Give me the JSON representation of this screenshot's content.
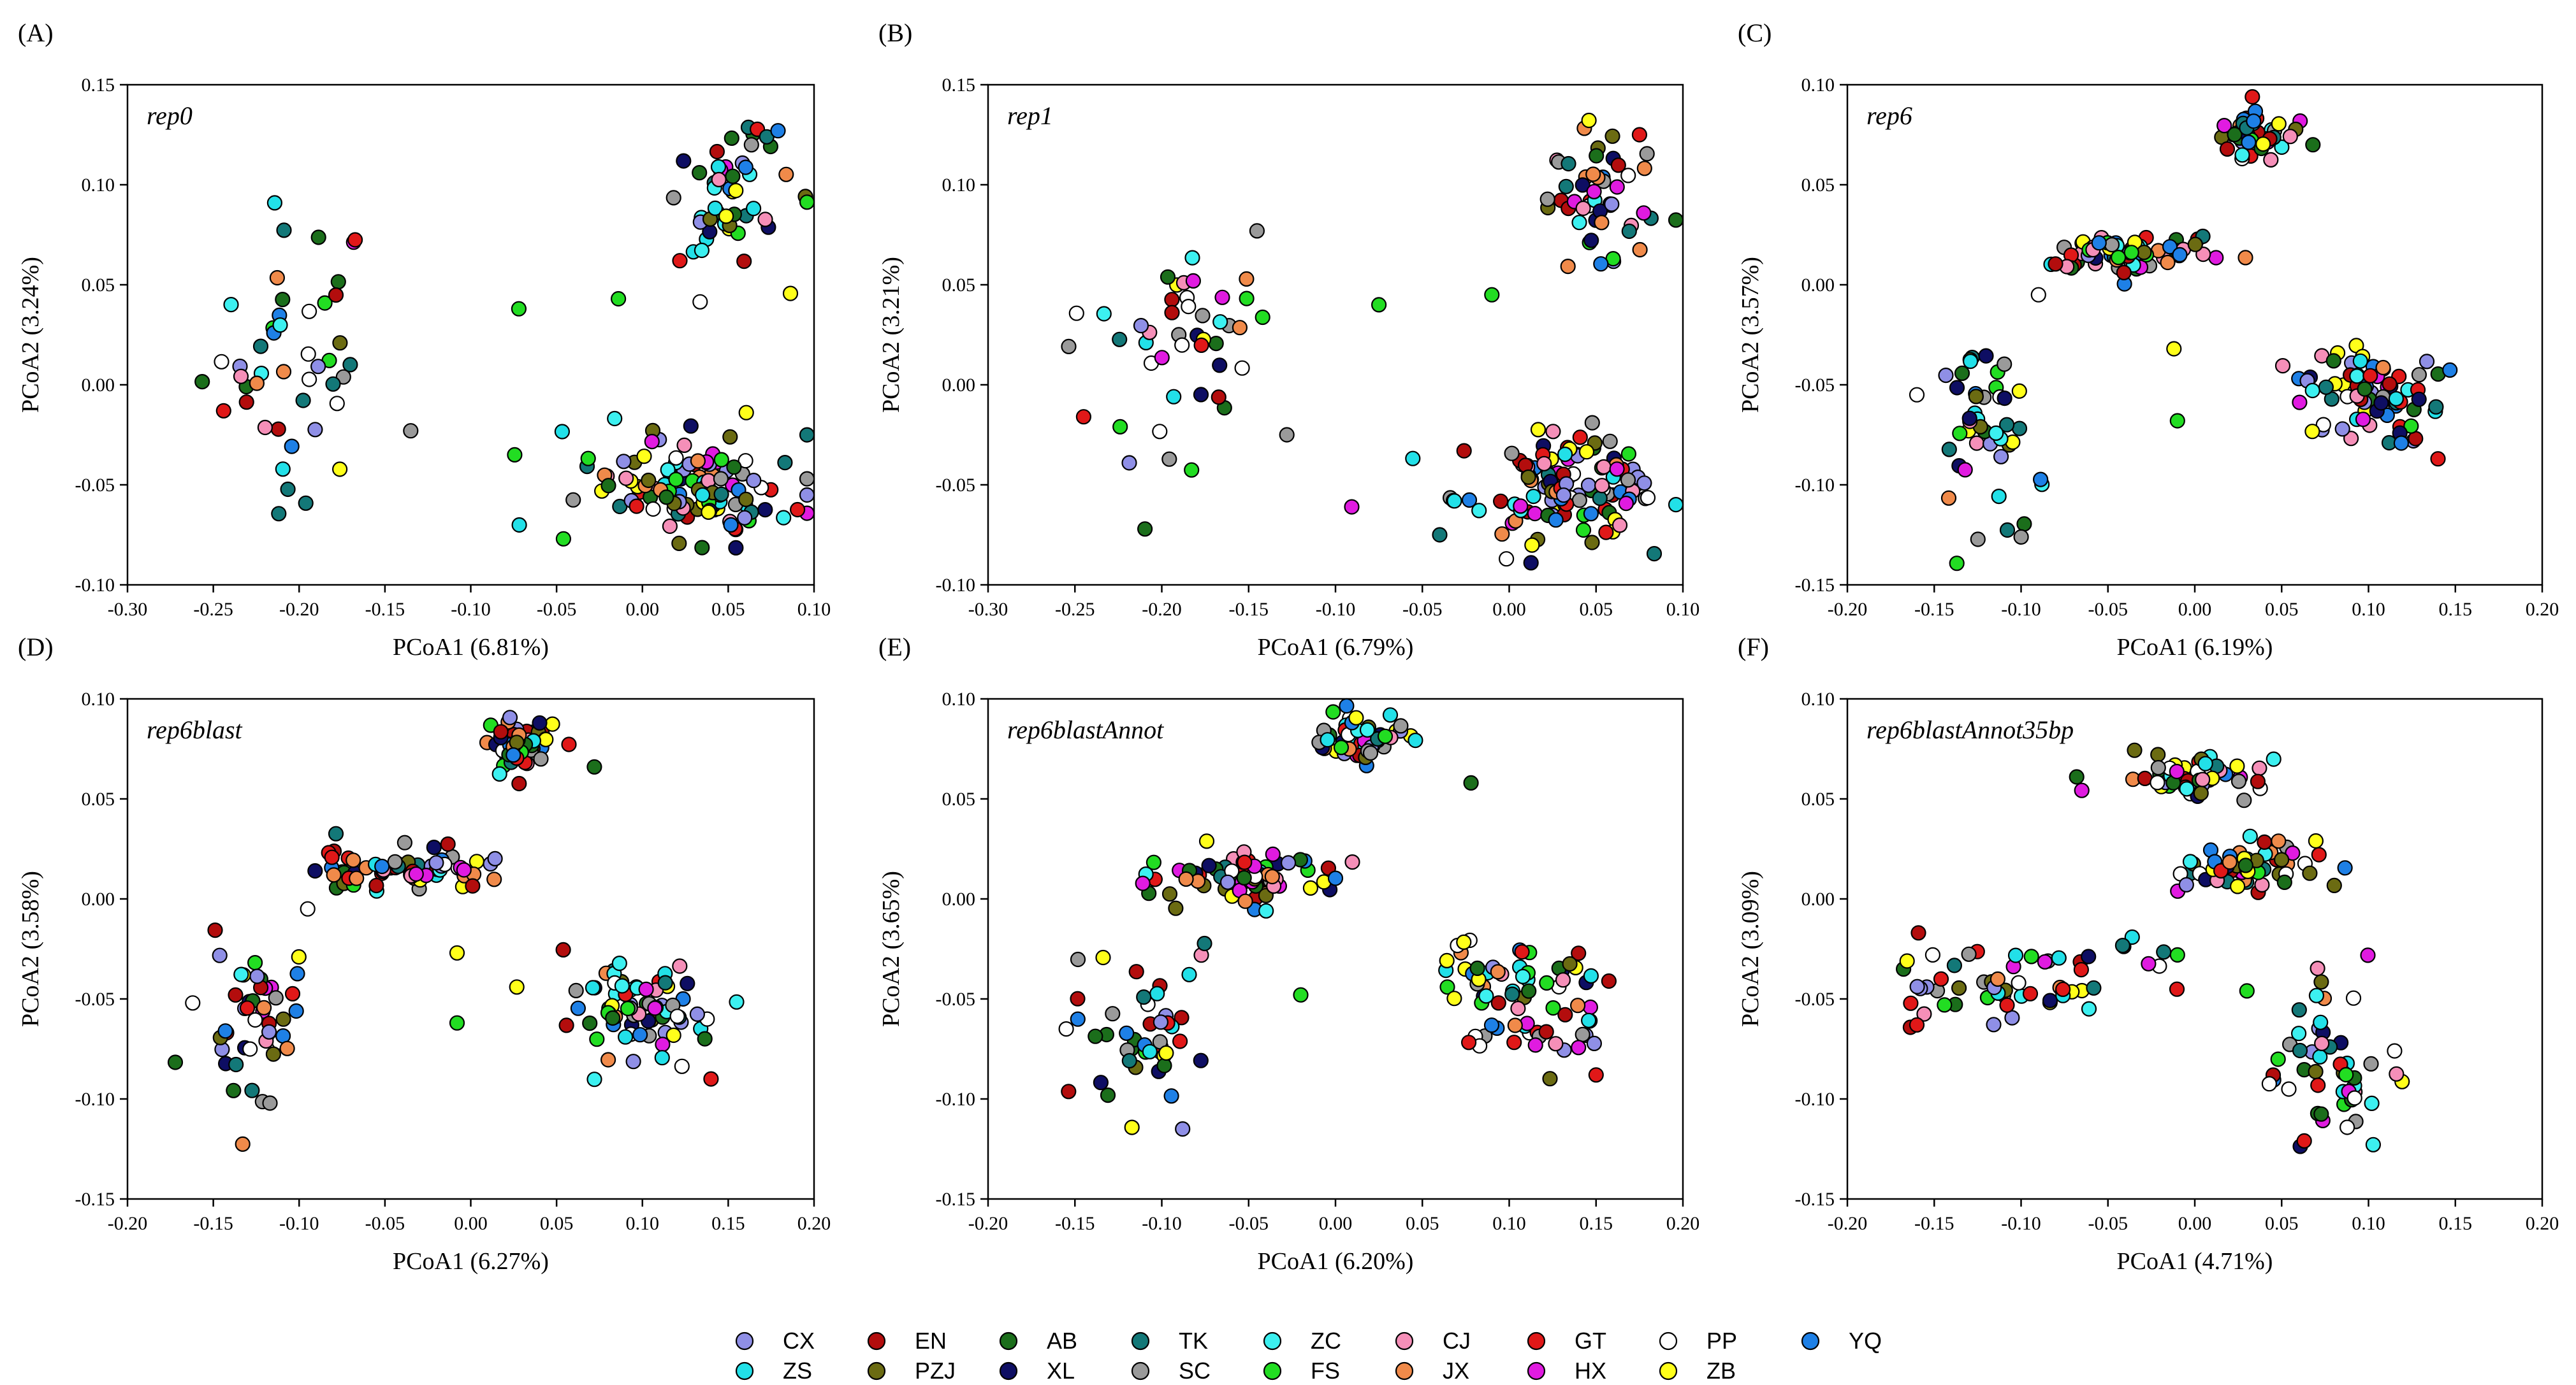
{
  "figure_kind": "PCoA scatter plots",
  "legend": {
    "items": [
      {
        "code": "CX",
        "color": "#8f8fe6"
      },
      {
        "code": "ZS",
        "color": "#22e0e8"
      },
      {
        "code": "EN",
        "color": "#b30d0d"
      },
      {
        "code": "PZJ",
        "color": "#6b6b12"
      },
      {
        "code": "AB",
        "color": "#1b6e1b"
      },
      {
        "code": "XL",
        "color": "#0e0e63"
      },
      {
        "code": "TK",
        "color": "#137878"
      },
      {
        "code": "SC",
        "color": "#9a9a9a"
      },
      {
        "code": "ZC",
        "color": "#3cf0f0"
      },
      {
        "code": "FS",
        "color": "#22dd22"
      },
      {
        "code": "CJ",
        "color": "#f58fb8"
      },
      {
        "code": "JX",
        "color": "#f08a4a"
      },
      {
        "code": "GT",
        "color": "#e01818"
      },
      {
        "code": "HX",
        "color": "#e01be0"
      },
      {
        "code": "PP",
        "color": "#ffffff"
      },
      {
        "code": "ZB",
        "color": "#ffff1a"
      },
      {
        "code": "YQ",
        "color": "#1e80e6"
      }
    ]
  },
  "chart_data": [
    {
      "type": "scatter",
      "panel_label": "(A)",
      "title": "rep0",
      "xlabel": "PCoA1 (6.81%)",
      "ylabel": "PCoA2 (3.24%)",
      "xlim": [
        -0.3,
        0.1
      ],
      "ylim": [
        -0.1,
        0.15
      ],
      "xticks": [
        "-0.30",
        "-0.25",
        "-0.20",
        "-0.15",
        "-0.10",
        "-0.05",
        "0.00",
        "0.05",
        "0.10"
      ],
      "yticks": [
        "-0.10",
        "-0.05",
        "0.00",
        "0.05",
        "0.10",
        "0.15"
      ],
      "clusters": [
        {
          "cx": -0.205,
          "cy": 0.02,
          "sx": 0.025,
          "sy": 0.035,
          "n": 45
        },
        {
          "cx": 0.05,
          "cy": 0.09,
          "sx": 0.018,
          "sy": 0.02,
          "n": 50
        },
        {
          "cx": 0.03,
          "cy": -0.05,
          "sx": 0.03,
          "sy": 0.013,
          "n": 120
        }
      ],
      "points": [
        {
          "x": -0.072,
          "y": 0.038,
          "g": "FS"
        },
        {
          "x": -0.014,
          "y": 0.043,
          "g": "FS"
        },
        {
          "x": -0.135,
          "y": -0.023,
          "g": "SC"
        },
        {
          "x": -0.046,
          "y": -0.077,
          "g": "FS"
        },
        {
          "x": 0.079,
          "y": 0.127,
          "g": "YQ"
        },
        {
          "x": -0.244,
          "y": -0.013,
          "g": "GT"
        }
      ]
    },
    {
      "type": "scatter",
      "panel_label": "(B)",
      "title": "rep1",
      "xlabel": "PCoA1 (6.79%)",
      "ylabel": "PCoA2 (3.21%)",
      "xlim": [
        -0.3,
        0.1
      ],
      "ylim": [
        -0.1,
        0.15
      ],
      "xticks": [
        "-0.30",
        "-0.25",
        "-0.20",
        "-0.15",
        "-0.10",
        "-0.05",
        "0.00",
        "0.05",
        "0.10"
      ],
      "yticks": [
        "-0.10",
        "-0.05",
        "0.00",
        "0.05",
        "0.10",
        "0.15"
      ],
      "clusters": [
        {
          "cx": -0.2,
          "cy": 0.02,
          "sx": 0.025,
          "sy": 0.035,
          "n": 45
        },
        {
          "cx": 0.05,
          "cy": 0.09,
          "sx": 0.018,
          "sy": 0.02,
          "n": 50
        },
        {
          "cx": 0.03,
          "cy": -0.05,
          "sx": 0.03,
          "sy": 0.013,
          "n": 120
        }
      ],
      "points": [
        {
          "x": -0.075,
          "y": 0.04,
          "g": "FS"
        },
        {
          "x": -0.01,
          "y": 0.045,
          "g": "FS"
        },
        {
          "x": -0.128,
          "y": -0.025,
          "g": "SC"
        },
        {
          "x": -0.04,
          "y": -0.075,
          "g": "TK"
        },
        {
          "x": 0.075,
          "y": 0.125,
          "g": "GT"
        },
        {
          "x": -0.245,
          "y": -0.016,
          "g": "GT"
        }
      ]
    },
    {
      "type": "scatter",
      "panel_label": "(C)",
      "title": "rep6",
      "xlabel": "PCoA1 (6.19%)",
      "ylabel": "PCoA2 (3.57%)",
      "xlim": [
        -0.2,
        0.2
      ],
      "ylim": [
        -0.15,
        0.1
      ],
      "xticks": [
        "-0.20",
        "-0.15",
        "-0.10",
        "-0.05",
        "0.00",
        "0.05",
        "0.10",
        "0.15",
        "0.20"
      ],
      "yticks": [
        "-0.15",
        "-0.10",
        "-0.05",
        "0.00",
        "0.05",
        "0.10"
      ],
      "clusters": [
        {
          "cx": 0.03,
          "cy": 0.075,
          "sx": 0.012,
          "sy": 0.006,
          "n": 55
        },
        {
          "cx": -0.04,
          "cy": 0.015,
          "sx": 0.025,
          "sy": 0.005,
          "n": 70
        },
        {
          "cx": -0.12,
          "cy": -0.065,
          "sx": 0.015,
          "sy": 0.022,
          "n": 45
        },
        {
          "cx": 0.1,
          "cy": -0.055,
          "sx": 0.022,
          "sy": 0.012,
          "n": 75
        }
      ],
      "points": [
        {
          "x": 0.068,
          "y": 0.07,
          "g": "AB"
        },
        {
          "x": -0.09,
          "y": -0.005,
          "g": "PP"
        },
        {
          "x": -0.012,
          "y": -0.032,
          "g": "ZB"
        },
        {
          "x": -0.01,
          "y": -0.068,
          "g": "FS"
        },
        {
          "x": 0.14,
          "y": -0.087,
          "g": "GT"
        },
        {
          "x": -0.16,
          "y": -0.055,
          "g": "PP"
        }
      ]
    },
    {
      "type": "scatter",
      "panel_label": "(D)",
      "title": "rep6blast",
      "xlabel": "PCoA1 (6.27%)",
      "ylabel": "PCoA2 (3.58%)",
      "xlim": [
        -0.2,
        0.2
      ],
      "ylim": [
        -0.15,
        0.1
      ],
      "xticks": [
        "-0.20",
        "-0.15",
        "-0.10",
        "-0.05",
        "0.00",
        "0.05",
        "0.10",
        "0.15",
        "0.20"
      ],
      "yticks": [
        "-0.15",
        "-0.10",
        "-0.05",
        "0.00",
        "0.05",
        "0.10"
      ],
      "clusters": [
        {
          "cx": 0.03,
          "cy": 0.077,
          "sx": 0.012,
          "sy": 0.006,
          "n": 55
        },
        {
          "cx": -0.04,
          "cy": 0.015,
          "sx": 0.025,
          "sy": 0.005,
          "n": 70
        },
        {
          "cx": -0.125,
          "cy": -0.065,
          "sx": 0.015,
          "sy": 0.022,
          "n": 45
        },
        {
          "cx": 0.1,
          "cy": -0.055,
          "sx": 0.022,
          "sy": 0.012,
          "n": 75
        }
      ],
      "points": [
        {
          "x": 0.072,
          "y": 0.066,
          "g": "AB"
        },
        {
          "x": -0.095,
          "y": -0.005,
          "g": "PP"
        },
        {
          "x": -0.008,
          "y": -0.027,
          "g": "ZB"
        },
        {
          "x": -0.008,
          "y": -0.062,
          "g": "FS"
        },
        {
          "x": 0.14,
          "y": -0.09,
          "g": "GT"
        },
        {
          "x": -0.162,
          "y": -0.052,
          "g": "PP"
        }
      ]
    },
    {
      "type": "scatter",
      "panel_label": "(E)",
      "title": "rep6blastAnnot",
      "xlabel": "PCoA1 (6.20%)",
      "ylabel": "PCoA2 (3.65%)",
      "xlim": [
        -0.2,
        0.2
      ],
      "ylim": [
        -0.15,
        0.1
      ],
      "xticks": [
        "-0.20",
        "-0.15",
        "-0.10",
        "-0.05",
        "0.00",
        "0.05",
        "0.10",
        "0.15",
        "0.20"
      ],
      "yticks": [
        "-0.15",
        "-0.10",
        "-0.05",
        "0.00",
        "0.05",
        "0.10"
      ],
      "clusters": [
        {
          "cx": 0.015,
          "cy": 0.08,
          "sx": 0.015,
          "sy": 0.006,
          "n": 55
        },
        {
          "cx": -0.045,
          "cy": 0.012,
          "sx": 0.025,
          "sy": 0.007,
          "n": 70
        },
        {
          "cx": -0.11,
          "cy": -0.065,
          "sx": 0.018,
          "sy": 0.022,
          "n": 45
        },
        {
          "cx": 0.11,
          "cy": -0.05,
          "sx": 0.025,
          "sy": 0.015,
          "n": 75
        }
      ],
      "points": [
        {
          "x": 0.078,
          "y": 0.058,
          "g": "AB"
        },
        {
          "x": -0.155,
          "y": -0.065,
          "g": "PP"
        },
        {
          "x": -0.02,
          "y": -0.048,
          "g": "FS"
        },
        {
          "x": 0.15,
          "y": -0.088,
          "g": "GT"
        },
        {
          "x": -0.088,
          "y": -0.115,
          "g": "CX"
        }
      ]
    },
    {
      "type": "scatter",
      "panel_label": "(F)",
      "title": "rep6blastAnnot35bp",
      "xlabel": "PCoA1 (4.71%)",
      "ylabel": "PCoA2 (3.09%)",
      "xlim": [
        -0.2,
        0.2
      ],
      "ylim": [
        -0.15,
        0.1
      ],
      "xticks": [
        "-0.20",
        "-0.15",
        "-0.10",
        "-0.05",
        "0.00",
        "0.05",
        "0.10",
        "0.15",
        "0.20"
      ],
      "yticks": [
        "-0.15",
        "-0.10",
        "-0.05",
        "0.00",
        "0.05",
        "0.10"
      ],
      "clusters": [
        {
          "cx": -0.005,
          "cy": 0.06,
          "sx": 0.02,
          "sy": 0.005,
          "n": 50
        },
        {
          "cx": 0.03,
          "cy": 0.015,
          "sx": 0.018,
          "sy": 0.008,
          "n": 60
        },
        {
          "cx": -0.1,
          "cy": -0.04,
          "sx": 0.04,
          "sy": 0.012,
          "n": 60
        },
        {
          "cx": 0.08,
          "cy": -0.085,
          "sx": 0.02,
          "sy": 0.02,
          "n": 50
        }
      ],
      "points": [
        {
          "x": -0.068,
          "y": 0.061,
          "g": "AB"
        },
        {
          "x": -0.16,
          "y": -0.063,
          "g": "GT"
        },
        {
          "x": 0.115,
          "y": -0.076,
          "g": "PP"
        },
        {
          "x": 0.063,
          "y": -0.121,
          "g": "GT"
        },
        {
          "x": -0.01,
          "y": -0.028,
          "g": "FS"
        },
        {
          "x": 0.03,
          "y": -0.046,
          "g": "FS"
        }
      ]
    }
  ]
}
